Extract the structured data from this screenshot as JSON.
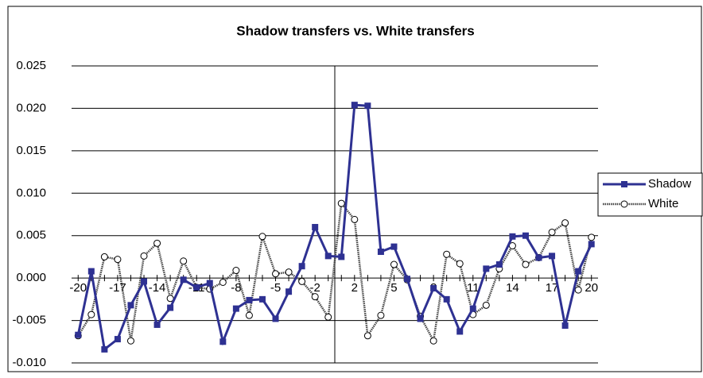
{
  "chart_data": {
    "type": "line",
    "title": "Shadow transfers vs. White transfers",
    "categories": [
      "-20",
      null,
      null,
      "-17",
      null,
      null,
      "-14",
      null,
      null,
      "-11",
      null,
      null,
      "-8",
      null,
      null,
      "-5",
      null,
      null,
      "-2",
      null,
      null,
      "2",
      null,
      null,
      "5",
      null,
      null,
      "8",
      null,
      null,
      "11",
      null,
      null,
      "14",
      null,
      null,
      "17",
      null,
      null,
      "20"
    ],
    "series": [
      {
        "name": "Shadow",
        "color": "#2e3192",
        "marker": "square",
        "values": [
          -0.0067,
          0.0008,
          -0.0084,
          -0.0072,
          -0.0032,
          -0.0004,
          -0.0055,
          -0.0035,
          -0.0002,
          -0.0011,
          -0.0006,
          -0.0075,
          -0.0036,
          -0.0026,
          -0.0025,
          -0.0048,
          -0.0016,
          0.0014,
          0.006,
          0.0026,
          0.0025,
          0.0204,
          0.0203,
          0.0031,
          0.0037,
          -0.0001,
          -0.0048,
          -0.0012,
          -0.0025,
          -0.0063,
          -0.0036,
          0.0011,
          0.0016,
          0.0049,
          0.005,
          0.0024,
          0.0026,
          -0.0056,
          0.0008,
          0.004
        ]
      },
      {
        "name": "White",
        "color": "#444444",
        "marker": "circle",
        "values": [
          -0.0068,
          -0.0043,
          0.0025,
          0.0022,
          -0.0074,
          0.0026,
          0.0041,
          -0.0024,
          0.002,
          -0.0011,
          -0.0013,
          -0.0005,
          0.0009,
          -0.0044,
          0.0049,
          0.0005,
          0.0007,
          -0.0004,
          -0.0022,
          -0.0046,
          0.0088,
          0.0069,
          -0.0068,
          -0.0044,
          0.0016,
          -0.0002,
          -0.0045,
          -0.0074,
          0.0028,
          0.0017,
          -0.0043,
          -0.0032,
          0.0011,
          0.0038,
          0.0016,
          0.0024,
          0.0054,
          0.0065,
          -0.0014,
          0.0048
        ]
      }
    ],
    "ylim": [
      -0.01,
      0.025
    ],
    "yticks": [
      {
        "value": -0.01,
        "label": "-0.010"
      },
      -0.005,
      {
        "value": 0,
        "label": "0.000"
      },
      0.005,
      {
        "value": 0.01,
        "label": "0.010"
      },
      0.015,
      {
        "value": 0.02,
        "label": "0.020"
      },
      0.025
    ],
    "grid": true,
    "legend": "right"
  }
}
